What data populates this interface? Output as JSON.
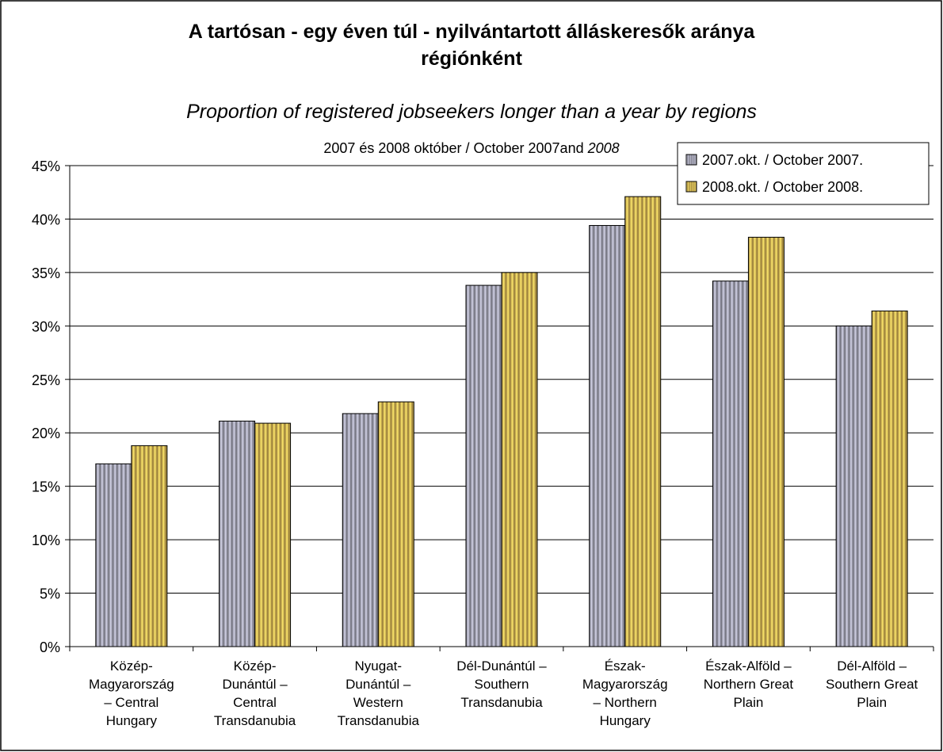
{
  "chart_data": {
    "type": "bar",
    "title": "A tartósan - egy éven túl - nyilvántartott álláskeresők aránya\nrégiónként",
    "title_english": "Proportion of registered jobseekers longer than a year by regions",
    "subtitle": "2007 és 2008 október / October 2007and ",
    "subtitle_italic": "2008",
    "categories": [
      "Közép-\nMagyarország\n– Central\nHungary",
      "Közép-\nDunántúl –\nCentral\nTransdanubia",
      "Nyugat-\nDunántúl –\nWestern\nTransdanubia",
      "Dél-Dunántúl –\nSouthern\nTransdanubia",
      "Észak-\nMagyarország\n– Northern\nHungary",
      "Észak-Alföld –\nNorthern Great\nPlain",
      "Dél-Alföld –\nSouthern Great\nPlain"
    ],
    "series": [
      {
        "name": "2007.okt. / October 2007.",
        "color": "#9c9cac",
        "values": [
          17.1,
          21.1,
          21.8,
          33.8,
          39.4,
          34.2,
          30.0
        ]
      },
      {
        "name": "2008.okt. / October 2008.",
        "color": "#d2ac50",
        "values": [
          18.8,
          20.9,
          22.9,
          35.0,
          42.1,
          38.3,
          31.4
        ]
      }
    ],
    "ylim": [
      0,
      45
    ],
    "yticks": [
      {
        "value": 0,
        "label": "0%"
      },
      {
        "value": 5,
        "label": "5%"
      },
      {
        "value": 10,
        "label": "10%"
      },
      {
        "value": 15,
        "label": "15%"
      },
      {
        "value": 20,
        "label": "20%"
      },
      {
        "value": 25,
        "label": "25%"
      },
      {
        "value": 30,
        "label": "30%"
      },
      {
        "value": 35,
        "label": "35%"
      },
      {
        "value": 40,
        "label": "40%"
      },
      {
        "value": 45,
        "label": "45%"
      }
    ],
    "grid": true,
    "legend": "top-right"
  }
}
